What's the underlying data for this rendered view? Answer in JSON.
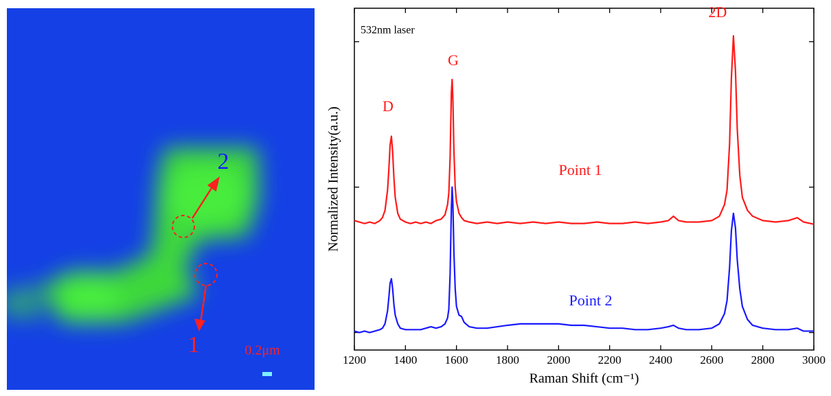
{
  "chart_data": {
    "type": "line",
    "x_label": "Raman Shift (cm⁻¹)",
    "y_label": "Normalized Intensity(a.u.)",
    "annotations": [
      "532nm laser",
      "D",
      "G",
      "2D"
    ],
    "x": [
      1200,
      1220,
      1240,
      1260,
      1280,
      1300,
      1310,
      1320,
      1330,
      1335,
      1340,
      1345,
      1350,
      1355,
      1360,
      1370,
      1380,
      1400,
      1420,
      1440,
      1460,
      1480,
      1500,
      1520,
      1540,
      1555,
      1565,
      1570,
      1575,
      1580,
      1583,
      1586,
      1590,
      1595,
      1600,
      1610,
      1620,
      1630,
      1650,
      1680,
      1720,
      1760,
      1800,
      1850,
      1900,
      1950,
      2000,
      2050,
      2100,
      2150,
      2200,
      2250,
      2300,
      2350,
      2400,
      2430,
      2450,
      2470,
      2500,
      2550,
      2600,
      2630,
      2650,
      2660,
      2670,
      2677,
      2685,
      2693,
      2700,
      2710,
      2720,
      2740,
      2760,
      2800,
      2850,
      2900,
      2935,
      2960,
      3000
    ],
    "series": [
      {
        "name": "Point 1",
        "color": "#ff1a1a",
        "values": [
          0.77,
          0.76,
          0.75,
          0.76,
          0.75,
          0.77,
          0.79,
          0.84,
          0.98,
          1.12,
          1.29,
          1.35,
          1.24,
          1.06,
          0.93,
          0.82,
          0.78,
          0.76,
          0.75,
          0.76,
          0.75,
          0.76,
          0.75,
          0.77,
          0.78,
          0.81,
          0.88,
          0.96,
          1.2,
          1.65,
          1.74,
          1.6,
          1.25,
          1.0,
          0.9,
          0.82,
          0.79,
          0.77,
          0.76,
          0.75,
          0.76,
          0.75,
          0.76,
          0.75,
          0.76,
          0.75,
          0.76,
          0.75,
          0.75,
          0.76,
          0.75,
          0.75,
          0.76,
          0.75,
          0.76,
          0.77,
          0.8,
          0.77,
          0.76,
          0.76,
          0.77,
          0.8,
          0.88,
          0.98,
          1.3,
          1.75,
          2.04,
          1.8,
          1.4,
          1.08,
          0.93,
          0.84,
          0.8,
          0.77,
          0.76,
          0.77,
          0.79,
          0.76,
          0.745
        ]
      },
      {
        "name": "Point 2",
        "color": "#1a1aff",
        "values": [
          0.01,
          0,
          0.01,
          0,
          0.01,
          0.02,
          0.03,
          0.06,
          0.15,
          0.24,
          0.34,
          0.37,
          0.3,
          0.19,
          0.12,
          0.06,
          0.03,
          0.02,
          0.02,
          0.02,
          0.02,
          0.03,
          0.04,
          0.03,
          0.04,
          0.06,
          0.1,
          0.16,
          0.4,
          0.85,
          1.0,
          0.88,
          0.55,
          0.3,
          0.18,
          0.12,
          0.11,
          0.07,
          0.04,
          0.03,
          0.03,
          0.04,
          0.05,
          0.06,
          0.06,
          0.06,
          0.06,
          0.05,
          0.05,
          0.04,
          0.03,
          0.03,
          0.02,
          0.02,
          0.03,
          0.04,
          0.05,
          0.03,
          0.02,
          0.02,
          0.03,
          0.06,
          0.13,
          0.22,
          0.45,
          0.7,
          0.82,
          0.72,
          0.5,
          0.3,
          0.18,
          0.09,
          0.05,
          0.03,
          0.02,
          0.02,
          0.03,
          0.01,
          0.01
        ]
      }
    ],
    "xlim": [
      1200,
      3000
    ],
    "xticks": [
      1200,
      1400,
      1600,
      1800,
      2000,
      2200,
      2400,
      2600,
      2800,
      3000
    ],
    "ylim": [
      -0.12,
      2.23
    ],
    "yticks": [
      0,
      1,
      2
    ]
  },
  "image": {
    "labels": [
      "2",
      "1",
      "0.2μm"
    ]
  }
}
